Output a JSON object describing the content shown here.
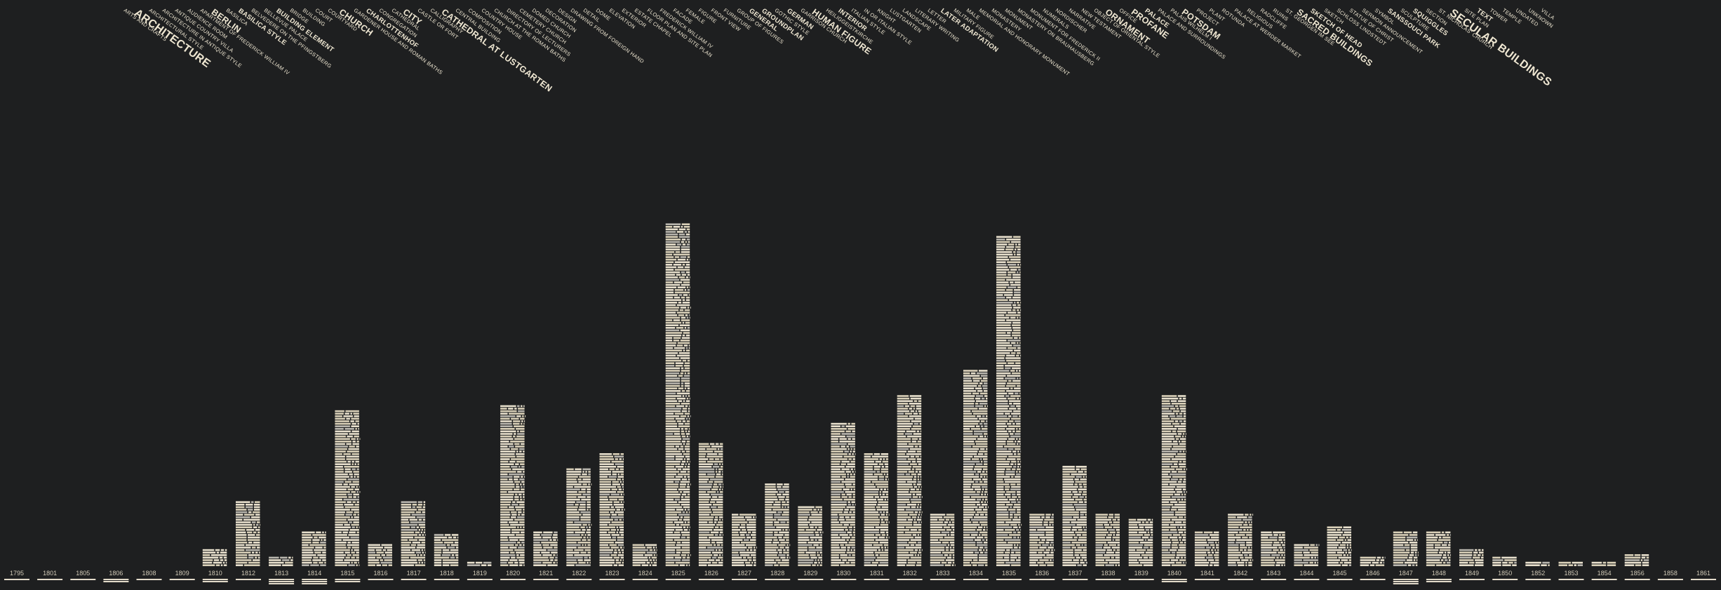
{
  "tags": [
    {
      "label": "ARTS AND CRAFTS",
      "w": 1
    },
    {
      "label": "ARCHITECTURE",
      "w": 4
    },
    {
      "label": "ARCHITECTURAL STYLE",
      "w": 1
    },
    {
      "label": "ARCHITECTURE IN ANTIQUE STYLE",
      "w": 1
    },
    {
      "label": "ANTIQUE COUNTRY VILLA",
      "w": 1
    },
    {
      "label": "AUDIENCE ROOM",
      "w": 1
    },
    {
      "label": "APARTMENT OF FREDERICK WILLIAM IV",
      "w": 1
    },
    {
      "label": "BERLIN",
      "w": 3
    },
    {
      "label": "BASILICA",
      "w": 1
    },
    {
      "label": "BASILICA STYLE",
      "w": 2
    },
    {
      "label": "BELVEDERE ON THE PFINGSTBERG",
      "w": 1
    },
    {
      "label": "BELLEVUE PALACE",
      "w": 1
    },
    {
      "label": "BUILDING ELEMENT",
      "w": 2
    },
    {
      "label": "BRIDGE",
      "w": 1
    },
    {
      "label": "BUILDING",
      "w": 1
    },
    {
      "label": "COURT",
      "w": 1
    },
    {
      "label": "COURTYARD",
      "w": 1
    },
    {
      "label": "CHURCH",
      "w": 3
    },
    {
      "label": "GARDENER HOUSE AND ROMAN BATHS",
      "w": 1
    },
    {
      "label": "CHARLOTTENHOF",
      "w": 2
    },
    {
      "label": "CONGREGATION",
      "w": 1
    },
    {
      "label": "CATHEDRAL",
      "w": 1
    },
    {
      "label": "CITY",
      "w": 3
    },
    {
      "label": "CASTLE OR FORT",
      "w": 1
    },
    {
      "label": "CALLIGRAPHY",
      "w": 1
    },
    {
      "label": "CATHEDRAL AT LUSTGARTEN",
      "w": 3
    },
    {
      "label": "CENTRAL BUILDING",
      "w": 1
    },
    {
      "label": "COMPOSITION",
      "w": 1
    },
    {
      "label": "COUNTRY HOUSE",
      "w": 1
    },
    {
      "label": "CHURCH AT THE ROMAN BATHS",
      "w": 1
    },
    {
      "label": "DIRECTORY OF LECTURERS",
      "w": 1
    },
    {
      "label": "CEMETERY CHURCH",
      "w": 1
    },
    {
      "label": "DOMED CHURCH",
      "w": 1
    },
    {
      "label": "DECORATION",
      "w": 1
    },
    {
      "label": "DESIGN",
      "w": 1
    },
    {
      "label": "DRAWING FROM FOREIGN HAND",
      "w": 1
    },
    {
      "label": "DETAIL",
      "w": 1
    },
    {
      "label": "DOME",
      "w": 1
    },
    {
      "label": "ELEVATION",
      "w": 1
    },
    {
      "label": "EXTERIOR",
      "w": 1
    },
    {
      "label": "ESTATE CHAPEL",
      "w": 1
    },
    {
      "label": "FLOOR PLAN AND SITE PLAN",
      "w": 1
    },
    {
      "label": "FREDERICK WILLIAM IV",
      "w": 1
    },
    {
      "label": "FACADE",
      "w": 1
    },
    {
      "label": "FEMALE",
      "w": 1
    },
    {
      "label": "FIGURE",
      "w": 1
    },
    {
      "label": "FRONT VIEW",
      "w": 1
    },
    {
      "label": "FURNITURE",
      "w": 1
    },
    {
      "label": "GROUP OF FIGURES",
      "w": 1
    },
    {
      "label": "GENERAL",
      "w": 2
    },
    {
      "label": "GROUNDPLAN",
      "w": 2
    },
    {
      "label": "GOTHIC STYLE",
      "w": 1
    },
    {
      "label": "GERMAN",
      "w": 2
    },
    {
      "label": "GARRISON CHURCH",
      "w": 1
    },
    {
      "label": "HUMAN FIGURE",
      "w": 3
    },
    {
      "label": "HEILIGGEISTKIRCHE",
      "w": 1
    },
    {
      "label": "INTERIOR",
      "w": 2
    },
    {
      "label": "ITALIAN STYLE",
      "w": 1
    },
    {
      "label": "IN OR ITALIAN STYLE",
      "w": 1
    },
    {
      "label": "KNIGHT",
      "w": 1
    },
    {
      "label": "LUSTGARTEN",
      "w": 1
    },
    {
      "label": "LANDSCAPE",
      "w": 1
    },
    {
      "label": "LITERARY WRITING",
      "w": 1
    },
    {
      "label": "LETTER",
      "w": 1
    },
    {
      "label": "LATER ADAPTATION",
      "w": 2
    },
    {
      "label": "MILITARY FIGURE",
      "w": 1
    },
    {
      "label": "MALE",
      "w": 1
    },
    {
      "label": "MEMORIAL AND HONORARY MONUMENT",
      "w": 1
    },
    {
      "label": "MONASTERY",
      "w": 1
    },
    {
      "label": "MONUMENT",
      "w": 1
    },
    {
      "label": "MONASTERY ON BRAUHAUSBERG",
      "w": 1
    },
    {
      "label": "MONUMENT FOR FREDERICK II",
      "w": 1
    },
    {
      "label": "NUMERALS",
      "w": 1
    },
    {
      "label": "NORDISCHER",
      "w": 1
    },
    {
      "label": "NARRATIVE",
      "w": 1
    },
    {
      "label": "NEW TESTAMENT",
      "w": 1
    },
    {
      "label": "OBJECT OF ORIENTAL STYLE",
      "w": 1
    },
    {
      "label": "ORNAMENT",
      "w": 3
    },
    {
      "label": "OFFICE",
      "w": 1
    },
    {
      "label": "PROFANE",
      "w": 3
    },
    {
      "label": "PALACE",
      "w": 2
    },
    {
      "label": "PALACE AND SURROUNDINGS",
      "w": 1
    },
    {
      "label": "PALAIS WILHELM I",
      "w": 1
    },
    {
      "label": "POTSDAM",
      "w": 3
    },
    {
      "label": "PROJECT",
      "w": 1
    },
    {
      "label": "PLANT",
      "w": 1
    },
    {
      "label": "ROTUNDA",
      "w": 1
    },
    {
      "label": "PALACE AT WERDER MARKET",
      "w": 1
    },
    {
      "label": "RELIGIOUS",
      "w": 1
    },
    {
      "label": "RADCLIFFE",
      "w": 1
    },
    {
      "label": "RUINS",
      "w": 1
    },
    {
      "label": "ST. GEORGEN IM SEE",
      "w": 1
    },
    {
      "label": "SACRED BUILDINGS",
      "w": 3
    },
    {
      "label": "SKETCH OF HEAD",
      "w": 2
    },
    {
      "label": "SKETCH",
      "w": 1
    },
    {
      "label": "SCHLOSS LINDSTEDT",
      "w": 1
    },
    {
      "label": "STATUE OF CHRIST",
      "w": 1
    },
    {
      "label": "SERMON ANNOUNCEMENT",
      "w": 1
    },
    {
      "label": "SYMBOL",
      "w": 1
    },
    {
      "label": "SANSSOUCI PARK",
      "w": 2
    },
    {
      "label": "SCULPTURE",
      "w": 1
    },
    {
      "label": "SQUIGGLES",
      "w": 2
    },
    {
      "label": "SECTION",
      "w": 1
    },
    {
      "label": "ST. NICHOLAS' CHURCH",
      "w": 1
    },
    {
      "label": "SECULAR BUILDINGS",
      "w": 4
    },
    {
      "label": "SITE PLAN",
      "w": 1
    },
    {
      "label": "TEXT",
      "w": 2
    },
    {
      "label": "TOWER",
      "w": 1
    },
    {
      "label": "TEMPLE",
      "w": 1
    },
    {
      "label": "UNDATED",
      "w": 1
    },
    {
      "label": "UNKNOWN",
      "w": 1
    },
    {
      "label": "VILLA",
      "w": 1
    }
  ],
  "chart_data": {
    "type": "bar",
    "title": "",
    "xlabel": "",
    "ylabel": "",
    "categories": [
      "1795",
      "1801",
      "1805",
      "1806",
      "1808",
      "1809",
      "1810",
      "1812",
      "1813",
      "1814",
      "1815",
      "1816",
      "1817",
      "1818",
      "1819",
      "1820",
      "1821",
      "1822",
      "1823",
      "1824",
      "1825",
      "1826",
      "1827",
      "1828",
      "1829",
      "1830",
      "1831",
      "1832",
      "1833",
      "1834",
      "1835",
      "1836",
      "1837",
      "1838",
      "1839",
      "1840",
      "1841",
      "1842",
      "1843",
      "1844",
      "1845",
      "1846",
      "1847",
      "1848",
      "1849",
      "1850",
      "1852",
      "1853",
      "1854",
      "1856",
      "1858",
      "1861"
    ],
    "values": [
      0,
      0,
      0,
      0,
      0,
      0,
      7,
      26,
      4,
      14,
      62,
      9,
      26,
      13,
      2,
      64,
      14,
      39,
      45,
      9,
      136,
      49,
      21,
      33,
      24,
      57,
      45,
      68,
      21,
      78,
      131,
      21,
      40,
      21,
      19,
      68,
      14,
      21,
      14,
      9,
      16,
      4,
      14,
      14,
      7,
      4,
      2,
      2,
      2,
      5,
      0,
      0
    ],
    "year_underline": [
      1,
      1,
      1,
      2,
      1,
      1,
      2,
      1,
      3,
      3,
      2,
      1,
      1,
      1,
      1,
      1,
      1,
      1,
      1,
      1,
      1,
      1,
      1,
      1,
      1,
      1,
      1,
      1,
      1,
      1,
      1,
      1,
      1,
      1,
      1,
      2,
      1,
      1,
      1,
      1,
      1,
      1,
      3,
      2,
      1,
      1,
      1,
      1,
      1,
      1,
      1,
      1
    ],
    "colors": {
      "background": "#1e1f20",
      "tile": "#e8e0cd",
      "tile_alt": "#d9d0b8",
      "tile_grey": "#b9b6ae",
      "text": "#efe7d2"
    },
    "grid": false,
    "legend": "none"
  }
}
